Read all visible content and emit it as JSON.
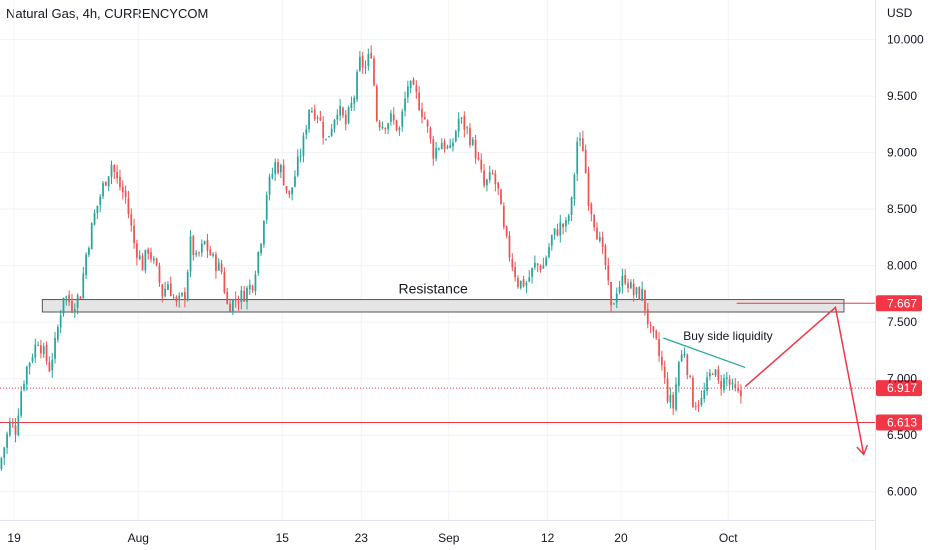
{
  "header": {
    "title": "Natural Gas, 4h, CURRENCYCOM",
    "currency": "USD"
  },
  "colors": {
    "up": "#26a69a",
    "down": "#ef5350",
    "grid": "#f0f3fa",
    "axis_text": "#131722",
    "zone_fill": "#e5e5e5",
    "zone_stroke": "#555555",
    "level_red": "#f23645",
    "trendline": "#26a69a"
  },
  "chart_data": {
    "type": "candlestick",
    "y_axis": {
      "ticks": [
        "10.000",
        "9.500",
        "9.000",
        "8.500",
        "8.000",
        "7.500",
        "7.000",
        "6.500",
        "6.000"
      ],
      "tick_values": [
        10.0,
        9.5,
        9.0,
        8.5,
        8.0,
        7.5,
        7.0,
        6.5,
        6.0
      ],
      "range": [
        5.75,
        10.35
      ]
    },
    "x_axis": {
      "ticks": [
        "19",
        "Aug",
        "15",
        "23",
        "Sep",
        "12",
        "20",
        "Oct"
      ],
      "tick_index": [
        5,
        49,
        100,
        128,
        159,
        194,
        220,
        258
      ],
      "range": [
        0,
        310
      ]
    },
    "price_path": [
      [
        0,
        6.2
      ],
      [
        4,
        6.6
      ],
      [
        6,
        6.55
      ],
      [
        8,
        6.9
      ],
      [
        10,
        7.1
      ],
      [
        14,
        7.35
      ],
      [
        18,
        7.1
      ],
      [
        20,
        7.3
      ],
      [
        23,
        7.75
      ],
      [
        26,
        7.65
      ],
      [
        29,
        7.75
      ],
      [
        31,
        8.1
      ],
      [
        34,
        8.45
      ],
      [
        37,
        8.7
      ],
      [
        40,
        8.9
      ],
      [
        42,
        8.75
      ],
      [
        45,
        8.6
      ],
      [
        48,
        8.2
      ],
      [
        51,
        8.0
      ],
      [
        53,
        8.15
      ],
      [
        56,
        7.95
      ],
      [
        58,
        7.75
      ],
      [
        60,
        7.85
      ],
      [
        63,
        7.65
      ],
      [
        66,
        7.75
      ],
      [
        68,
        8.2
      ],
      [
        70,
        8.05
      ],
      [
        73,
        8.2
      ],
      [
        76,
        8.05
      ],
      [
        79,
        7.95
      ],
      [
        81,
        7.65
      ],
      [
        84,
        7.7
      ],
      [
        87,
        7.75
      ],
      [
        90,
        7.85
      ],
      [
        93,
        8.25
      ],
      [
        95,
        8.65
      ],
      [
        98,
        8.9
      ],
      [
        100,
        8.85
      ],
      [
        103,
        8.6
      ],
      [
        106,
        8.9
      ],
      [
        108,
        9.1
      ],
      [
        110,
        9.4
      ],
      [
        113,
        9.35
      ],
      [
        116,
        9.1
      ],
      [
        118,
        9.25
      ],
      [
        120,
        9.4
      ],
      [
        123,
        9.25
      ],
      [
        126,
        9.5
      ],
      [
        128,
        9.8
      ],
      [
        130,
        9.75
      ],
      [
        132,
        9.9
      ],
      [
        134,
        9.3
      ],
      [
        136,
        9.25
      ],
      [
        139,
        9.3
      ],
      [
        142,
        9.2
      ],
      [
        145,
        9.6
      ],
      [
        148,
        9.5
      ],
      [
        151,
        9.3
      ],
      [
        154,
        9.0
      ],
      [
        157,
        9.1
      ],
      [
        160,
        9.0
      ],
      [
        163,
        9.3
      ],
      [
        166,
        9.2
      ],
      [
        169,
        9.0
      ],
      [
        172,
        8.7
      ],
      [
        175,
        8.8
      ],
      [
        177,
        8.65
      ],
      [
        179,
        8.3
      ],
      [
        181,
        8.1
      ],
      [
        184,
        7.85
      ],
      [
        187,
        7.85
      ],
      [
        190,
        8.0
      ],
      [
        193,
        8.0
      ],
      [
        196,
        8.25
      ],
      [
        199,
        8.35
      ],
      [
        201,
        8.35
      ],
      [
        203,
        8.55
      ],
      [
        205,
        9.1
      ],
      [
        207,
        9.05
      ],
      [
        209,
        8.6
      ],
      [
        212,
        8.3
      ],
      [
        215,
        8.0
      ],
      [
        217,
        7.6
      ],
      [
        219,
        7.8
      ],
      [
        222,
        7.9
      ],
      [
        225,
        7.75
      ],
      [
        228,
        7.75
      ],
      [
        231,
        7.4
      ],
      [
        233,
        7.3
      ],
      [
        235,
        7.1
      ],
      [
        237,
        6.85
      ],
      [
        239,
        6.75
      ],
      [
        241,
        7.15
      ],
      [
        243,
        7.25
      ],
      [
        246,
        6.8
      ],
      [
        249,
        6.8
      ],
      [
        251,
        6.95
      ],
      [
        253,
        7.1
      ],
      [
        255,
        6.95
      ],
      [
        258,
        7.0
      ],
      [
        260,
        6.9
      ],
      [
        262,
        6.85
      ]
    ],
    "resistance_zone": {
      "label": "Resistance",
      "from": 7.59,
      "to": 7.7,
      "start_index": 15,
      "end_index": 299
    },
    "horizontal_levels": [
      {
        "name": "upper-level",
        "value": 7.667,
        "label": "7.667",
        "style": "solid",
        "start_index": 261
      },
      {
        "name": "current-price",
        "value": 6.917,
        "label": "6.917",
        "style": "dotted",
        "start_index": 0
      },
      {
        "name": "support-level",
        "value": 6.613,
        "label": "6.613",
        "style": "solid",
        "start_index": 0
      }
    ],
    "trendline": {
      "label": "Buy side liquidity",
      "from": [
        235,
        7.36
      ],
      "to": [
        264,
        7.1
      ]
    },
    "projection": [
      [
        264,
        6.93
      ],
      [
        296,
        7.63
      ],
      [
        306,
        6.33
      ]
    ]
  }
}
